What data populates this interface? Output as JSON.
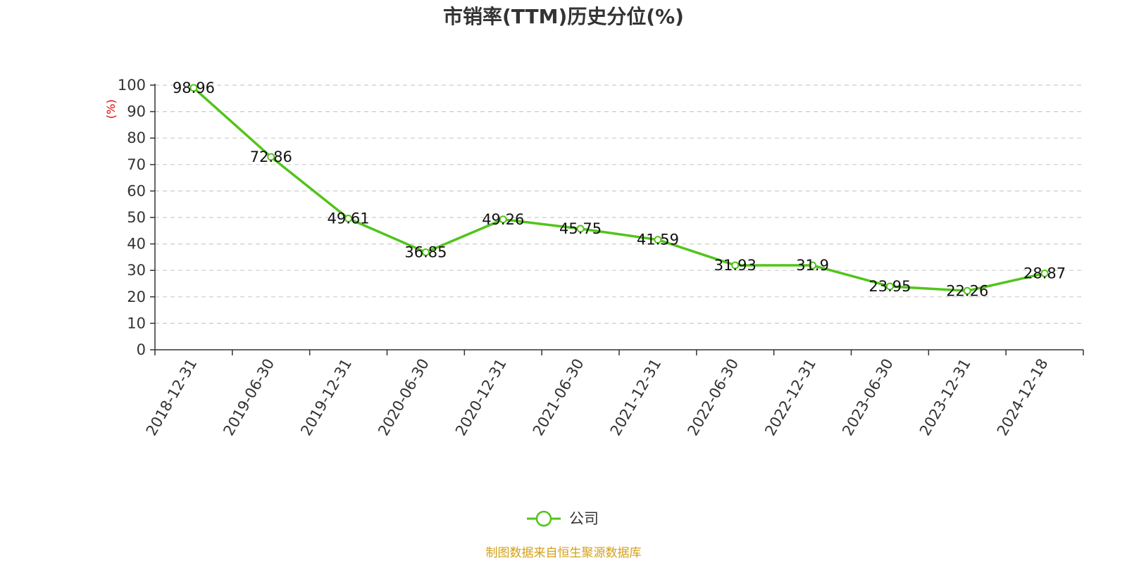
{
  "chart_data": {
    "type": "line",
    "title": "市销率(TTM)历史分位(%)",
    "ylabel": "(%)",
    "xlabel": "",
    "ylim": [
      0,
      100
    ],
    "yticks": [
      "0",
      "10",
      "20",
      "30",
      "40",
      "50",
      "60",
      "70",
      "80",
      "90",
      "100"
    ],
    "categories": [
      "2018-12-31",
      "2019-06-30",
      "2019-12-31",
      "2020-06-30",
      "2020-12-31",
      "2021-06-30",
      "2021-12-31",
      "2022-06-30",
      "2022-12-31",
      "2023-06-30",
      "2023-12-31",
      "2024-12-18"
    ],
    "series": [
      {
        "name": "公司",
        "values": [
          98.96,
          72.86,
          49.61,
          36.85,
          49.26,
          45.75,
          41.59,
          31.93,
          31.9,
          23.95,
          22.26,
          28.87
        ],
        "labels": [
          "98.96",
          "72.86",
          "49.61",
          "36.85",
          "49.26",
          "45.75",
          "41.59",
          "31.93",
          "31.9",
          "23.95",
          "22.26",
          "28.87"
        ],
        "color": "#52c41a"
      }
    ],
    "grid": true,
    "legend": "bottom-center",
    "source": "制图数据来自恒生聚源数据库",
    "colors": {
      "axis": "#333333",
      "grid": "#cccccc",
      "ylabel": "#e00000",
      "source": "#d4a017"
    }
  }
}
